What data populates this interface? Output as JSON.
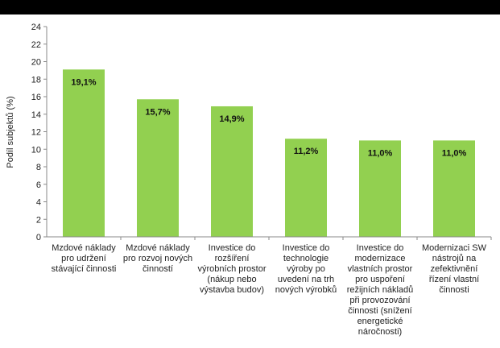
{
  "chart_data": {
    "type": "bar",
    "ylabel": "Podíl subjektů (%)",
    "ylim": [
      0,
      24
    ],
    "yticks": [
      0,
      2,
      4,
      6,
      8,
      10,
      12,
      14,
      16,
      18,
      20,
      22,
      24
    ],
    "grid": false,
    "bar_color": "#92d050",
    "categories": [
      [
        "Mzdové náklady",
        "pro udržení",
        "stávající činnosti"
      ],
      [
        "Mzdové náklady",
        "pro rozvoj nových",
        "činností"
      ],
      [
        "Investice do",
        "rozšíření",
        "výrobních prostor",
        "(nákup nebo",
        "výstavba budov)"
      ],
      [
        "Investice do",
        "technologie",
        "výroby po",
        "uvedení na trh",
        "nových výrobků"
      ],
      [
        "Investice do",
        "modernizace",
        "vlastních prostor",
        "pro uspoření",
        "režijních nákladů",
        "při provozování",
        "činnosti (snížení",
        "energetické",
        "náročnosti)"
      ],
      [
        "Modernizaci SW",
        "nástrojů na",
        "zefektivnění",
        "řízení vlastní",
        "činnosti"
      ]
    ],
    "values": [
      19.1,
      15.7,
      14.9,
      11.2,
      11.0,
      11.0
    ],
    "data_labels": [
      "19,1%",
      "15,7%",
      "14,9%",
      "11,2%",
      "11,0%",
      "11,0%"
    ]
  }
}
